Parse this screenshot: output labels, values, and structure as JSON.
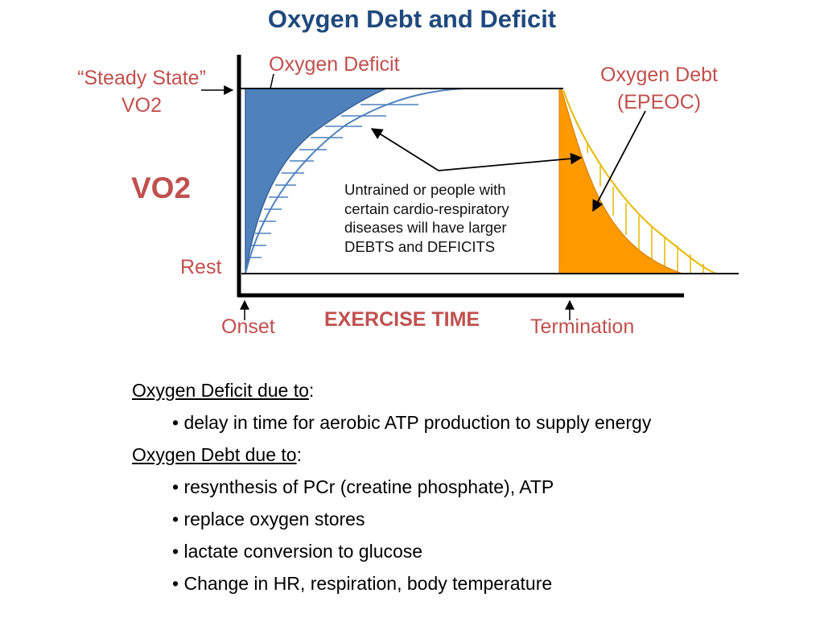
{
  "title": "Oxygen Debt and Deficit",
  "diagram": {
    "labels": {
      "steady_state_line1": "“Steady State”",
      "steady_state_line2": "VO2",
      "oxygen_deficit": "Oxygen Deficit",
      "oxygen_debt_line1": "Oxygen Debt",
      "oxygen_debt_line2": "(EPEOC)",
      "vo2": "VO2",
      "rest": "Rest",
      "onset": "Onset",
      "termination": "Termination",
      "exercise_time": "EXERCISE TIME"
    },
    "note_lines": [
      "Untrained or people with",
      "certain cardio-respiratory",
      "diseases will have larger",
      "DEBTS and DEFICITS"
    ],
    "colors": {
      "deficit_fill": "#4F81BD",
      "debt_fill": "#FF9900",
      "untrained_hatch": "#4F81BD",
      "debt_hatch": "#E6B800",
      "label_red": "#C0504D",
      "title_blue": "#1F497D"
    }
  },
  "notes": {
    "deficit_heading": "Oxygen Deficit due to",
    "deficit_items": [
      "delay in time for aerobic ATP production to supply energy"
    ],
    "debt_heading": "Oxygen Debt due to",
    "debt_items": [
      "resynthesis of PCr (creatine phosphate), ATP",
      "replace oxygen stores",
      "lactate conversion to glucose",
      "Change in HR, respiration, body temperature"
    ],
    "bullet": "•",
    "colon": ":"
  }
}
